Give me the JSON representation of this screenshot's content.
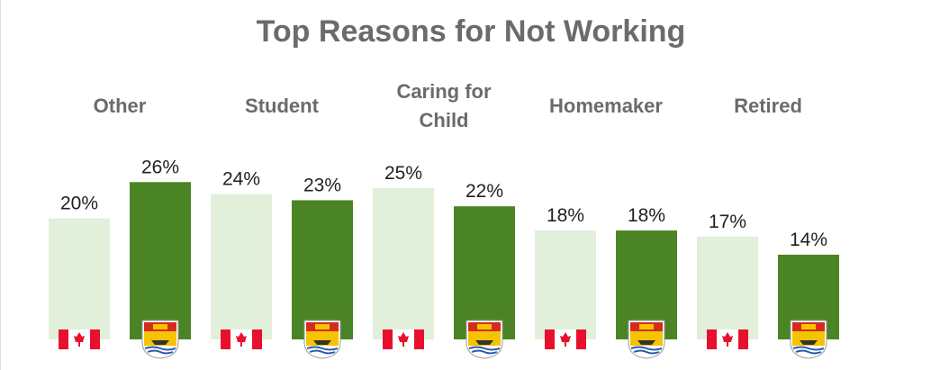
{
  "chart_data": {
    "type": "bar",
    "title": "Top Reasons for Not Working",
    "categories": [
      "Other",
      "Student",
      "Caring for Child",
      "Homemaker",
      "Retired"
    ],
    "series": [
      {
        "color": "#e2efda",
        "values": [
          20,
          24,
          25,
          18,
          17
        ],
        "value_labels": [
          "20%",
          "24%",
          "25%",
          "18%",
          "17%"
        ]
      },
      {
        "color": "#4a8424",
        "values": [
          26,
          23,
          22,
          18,
          14
        ],
        "value_labels": [
          "26%",
          "23%",
          "22%",
          "18%",
          "14%"
        ]
      }
    ]
  }
}
